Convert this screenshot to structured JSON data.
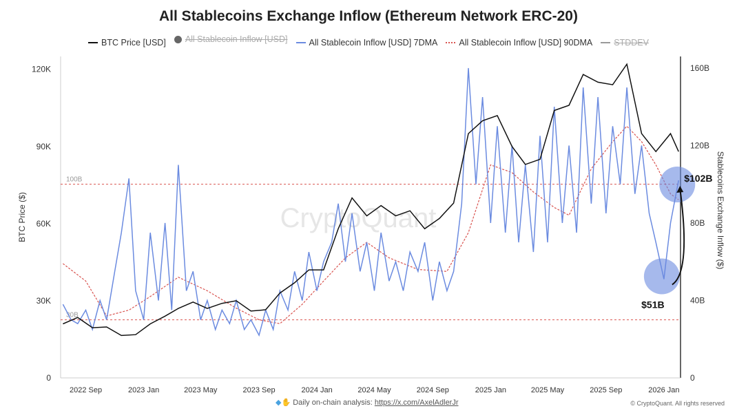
{
  "title": "All Stablecoins Exchange Inflow (Ethereum Network ERC-20)",
  "legend": [
    {
      "label": "BTC Price [USD]",
      "color": "#111111",
      "style": "solid",
      "disabled": false
    },
    {
      "label": "All Stablecoin Inflow [USD]",
      "color": "#666666",
      "style": "dot",
      "disabled": true
    },
    {
      "label": "All Stablecoin Inflow [USD] 7DMA",
      "color": "#6b8be0",
      "style": "solid",
      "disabled": false
    },
    {
      "label": "All Stablecoin Inflow [USD] 90DMA",
      "color": "#d9534f",
      "style": "dashed",
      "disabled": false
    },
    {
      "label": "STDDEV",
      "color": "#999999",
      "style": "solid",
      "disabled": true
    }
  ],
  "footer": {
    "text": "Daily on-chain analysis:",
    "link": "https://x.com/AxelAdlerJr",
    "copyright": "© CryptoQuant. All rights reserved",
    "icons": [
      "gem-icon",
      "raised-hands-icon"
    ]
  },
  "watermark": "CryptoQuant",
  "chart_data": {
    "type": "line",
    "title": "All Stablecoins Exchange Inflow (Ethereum Network ERC-20)",
    "ylabel_left": "BTC Price ($)",
    "ylabel_right": "Stablecoins Exchange Inflow ($)",
    "ylim_left": [
      0,
      125000
    ],
    "ylim_right": [
      0,
      166
    ],
    "yticks_left": [
      {
        "v": 0,
        "label": "0"
      },
      {
        "v": 30000,
        "label": "30K"
      },
      {
        "v": 60000,
        "label": "60K"
      },
      {
        "v": 90000,
        "label": "90K"
      },
      {
        "v": 120000,
        "label": "120K"
      }
    ],
    "yticks_right": [
      {
        "v": 0,
        "label": "0"
      },
      {
        "v": 40,
        "label": "40B"
      },
      {
        "v": 80,
        "label": "80B"
      },
      {
        "v": 120,
        "label": "120B"
      },
      {
        "v": 160,
        "label": "160B"
      }
    ],
    "xlim": [
      "2022-07-10",
      "2026-02-05"
    ],
    "xticks": [
      {
        "d": "2022-09-01",
        "label": "2022 Sep"
      },
      {
        "d": "2023-01-01",
        "label": "2023 Jan"
      },
      {
        "d": "2023-05-01",
        "label": "2023 May"
      },
      {
        "d": "2023-09-01",
        "label": "2023 Sep"
      },
      {
        "d": "2024-01-01",
        "label": "2024 Jan"
      },
      {
        "d": "2024-05-01",
        "label": "2024 May"
      },
      {
        "d": "2024-09-01",
        "label": "2024 Sep"
      },
      {
        "d": "2025-01-01",
        "label": "2025 Jan"
      },
      {
        "d": "2025-05-01",
        "label": "2025 May"
      },
      {
        "d": "2025-09-01",
        "label": "2025 Sep"
      },
      {
        "d": "2026-01-01",
        "label": "2026 Jan"
      }
    ],
    "hlines": [
      {
        "v": 100,
        "label": "100B",
        "axis": "right"
      },
      {
        "v": 30,
        "label": "30B",
        "axis": "right"
      }
    ],
    "grid": false,
    "legend_position": "top",
    "annotations": [
      {
        "label": "$51B",
        "d": "2026-01-01",
        "v": 51
      },
      {
        "label": "$102B",
        "d": "2026-02-01",
        "v": 102
      }
    ],
    "series": [
      {
        "name": "BTC Price [USD]",
        "axis": "left",
        "color": "#111111",
        "points": [
          [
            "2022-07-15",
            21000
          ],
          [
            "2022-08-15",
            23500
          ],
          [
            "2022-09-15",
            19500
          ],
          [
            "2022-10-15",
            19800
          ],
          [
            "2022-11-15",
            16500
          ],
          [
            "2022-12-15",
            16800
          ],
          [
            "2023-01-15",
            21000
          ],
          [
            "2023-02-15",
            24000
          ],
          [
            "2023-03-15",
            27000
          ],
          [
            "2023-04-15",
            29500
          ],
          [
            "2023-05-15",
            27000
          ],
          [
            "2023-06-15",
            29000
          ],
          [
            "2023-07-15",
            30000
          ],
          [
            "2023-08-15",
            26000
          ],
          [
            "2023-09-15",
            26500
          ],
          [
            "2023-10-15",
            33000
          ],
          [
            "2023-11-15",
            37000
          ],
          [
            "2023-12-15",
            42000
          ],
          [
            "2024-01-15",
            42000
          ],
          [
            "2024-02-15",
            58000
          ],
          [
            "2024-03-15",
            70000
          ],
          [
            "2024-04-15",
            63000
          ],
          [
            "2024-05-15",
            67000
          ],
          [
            "2024-06-15",
            63000
          ],
          [
            "2024-07-15",
            65000
          ],
          [
            "2024-08-15",
            58000
          ],
          [
            "2024-09-15",
            62000
          ],
          [
            "2024-10-15",
            68000
          ],
          [
            "2024-11-15",
            95000
          ],
          [
            "2024-12-15",
            100000
          ],
          [
            "2025-01-15",
            102000
          ],
          [
            "2025-02-15",
            90000
          ],
          [
            "2025-03-15",
            83000
          ],
          [
            "2025-04-15",
            85000
          ],
          [
            "2025-05-15",
            104000
          ],
          [
            "2025-06-15",
            106000
          ],
          [
            "2025-07-15",
            118000
          ],
          [
            "2025-08-15",
            115000
          ],
          [
            "2025-09-15",
            114000
          ],
          [
            "2025-10-15",
            122000
          ],
          [
            "2025-11-15",
            95000
          ],
          [
            "2025-12-15",
            88000
          ],
          [
            "2026-01-15",
            95000
          ],
          [
            "2026-02-01",
            88000
          ]
        ]
      },
      {
        "name": "All Stablecoin Inflow [USD] 7DMA",
        "axis": "right",
        "color": "#6b8be0",
        "points": [
          [
            "2022-07-15",
            38
          ],
          [
            "2022-08-01",
            30
          ],
          [
            "2022-08-15",
            28
          ],
          [
            "2022-09-01",
            35
          ],
          [
            "2022-09-15",
            25
          ],
          [
            "2022-10-01",
            40
          ],
          [
            "2022-10-15",
            30
          ],
          [
            "2022-11-01",
            55
          ],
          [
            "2022-11-15",
            75
          ],
          [
            "2022-12-01",
            103
          ],
          [
            "2022-12-15",
            45
          ],
          [
            "2023-01-01",
            30
          ],
          [
            "2023-01-15",
            75
          ],
          [
            "2023-02-01",
            40
          ],
          [
            "2023-02-15",
            80
          ],
          [
            "2023-03-01",
            35
          ],
          [
            "2023-03-15",
            110
          ],
          [
            "2023-04-01",
            45
          ],
          [
            "2023-04-15",
            55
          ],
          [
            "2023-05-01",
            30
          ],
          [
            "2023-05-15",
            40
          ],
          [
            "2023-06-01",
            25
          ],
          [
            "2023-06-15",
            35
          ],
          [
            "2023-07-01",
            28
          ],
          [
            "2023-07-15",
            40
          ],
          [
            "2023-08-01",
            25
          ],
          [
            "2023-08-15",
            30
          ],
          [
            "2023-09-01",
            22
          ],
          [
            "2023-09-15",
            35
          ],
          [
            "2023-10-01",
            25
          ],
          [
            "2023-10-15",
            45
          ],
          [
            "2023-11-01",
            35
          ],
          [
            "2023-11-15",
            55
          ],
          [
            "2023-12-01",
            40
          ],
          [
            "2023-12-15",
            65
          ],
          [
            "2024-01-01",
            45
          ],
          [
            "2024-01-15",
            60
          ],
          [
            "2024-02-01",
            70
          ],
          [
            "2024-02-15",
            90
          ],
          [
            "2024-03-01",
            60
          ],
          [
            "2024-03-15",
            85
          ],
          [
            "2024-04-01",
            55
          ],
          [
            "2024-04-15",
            70
          ],
          [
            "2024-05-01",
            45
          ],
          [
            "2024-05-15",
            75
          ],
          [
            "2024-06-01",
            50
          ],
          [
            "2024-06-15",
            60
          ],
          [
            "2024-07-01",
            45
          ],
          [
            "2024-07-15",
            65
          ],
          [
            "2024-08-01",
            55
          ],
          [
            "2024-08-15",
            70
          ],
          [
            "2024-09-01",
            40
          ],
          [
            "2024-09-15",
            60
          ],
          [
            "2024-10-01",
            45
          ],
          [
            "2024-10-15",
            55
          ],
          [
            "2024-11-01",
            90
          ],
          [
            "2024-11-15",
            160
          ],
          [
            "2024-12-01",
            100
          ],
          [
            "2024-12-15",
            145
          ],
          [
            "2025-01-01",
            80
          ],
          [
            "2025-01-15",
            130
          ],
          [
            "2025-02-01",
            75
          ],
          [
            "2025-02-15",
            120
          ],
          [
            "2025-03-01",
            70
          ],
          [
            "2025-03-15",
            110
          ],
          [
            "2025-04-01",
            65
          ],
          [
            "2025-04-15",
            125
          ],
          [
            "2025-05-01",
            70
          ],
          [
            "2025-05-15",
            140
          ],
          [
            "2025-06-01",
            80
          ],
          [
            "2025-06-15",
            120
          ],
          [
            "2025-07-01",
            75
          ],
          [
            "2025-07-15",
            150
          ],
          [
            "2025-08-01",
            90
          ],
          [
            "2025-08-15",
            145
          ],
          [
            "2025-09-01",
            85
          ],
          [
            "2025-09-15",
            130
          ],
          [
            "2025-10-01",
            100
          ],
          [
            "2025-10-15",
            150
          ],
          [
            "2025-11-01",
            95
          ],
          [
            "2025-11-15",
            120
          ],
          [
            "2025-12-01",
            85
          ],
          [
            "2025-12-15",
            70
          ],
          [
            "2026-01-01",
            51
          ],
          [
            "2026-01-15",
            80
          ],
          [
            "2026-02-01",
            102
          ]
        ]
      },
      {
        "name": "All Stablecoin Inflow [USD] 90DMA",
        "axis": "right",
        "color": "#d9534f",
        "dashed": true,
        "points": [
          [
            "2022-07-15",
            59
          ],
          [
            "2022-09-01",
            50
          ],
          [
            "2022-10-15",
            32
          ],
          [
            "2022-12-01",
            35
          ],
          [
            "2023-01-15",
            42
          ],
          [
            "2023-03-15",
            52
          ],
          [
            "2023-05-15",
            45
          ],
          [
            "2023-07-15",
            36
          ],
          [
            "2023-09-01",
            30
          ],
          [
            "2023-10-15",
            28
          ],
          [
            "2023-12-01",
            38
          ],
          [
            "2024-01-15",
            50
          ],
          [
            "2024-03-01",
            62
          ],
          [
            "2024-04-15",
            70
          ],
          [
            "2024-06-01",
            62
          ],
          [
            "2024-08-01",
            56
          ],
          [
            "2024-10-01",
            55
          ],
          [
            "2024-11-15",
            75
          ],
          [
            "2025-01-01",
            110
          ],
          [
            "2025-02-15",
            106
          ],
          [
            "2025-04-01",
            96
          ],
          [
            "2025-05-15",
            88
          ],
          [
            "2025-06-15",
            84
          ],
          [
            "2025-08-01",
            108
          ],
          [
            "2025-09-15",
            122
          ],
          [
            "2025-10-15",
            130
          ],
          [
            "2025-11-15",
            122
          ],
          [
            "2025-12-15",
            110
          ],
          [
            "2026-01-15",
            95
          ],
          [
            "2026-02-01",
            92
          ]
        ]
      }
    ]
  }
}
